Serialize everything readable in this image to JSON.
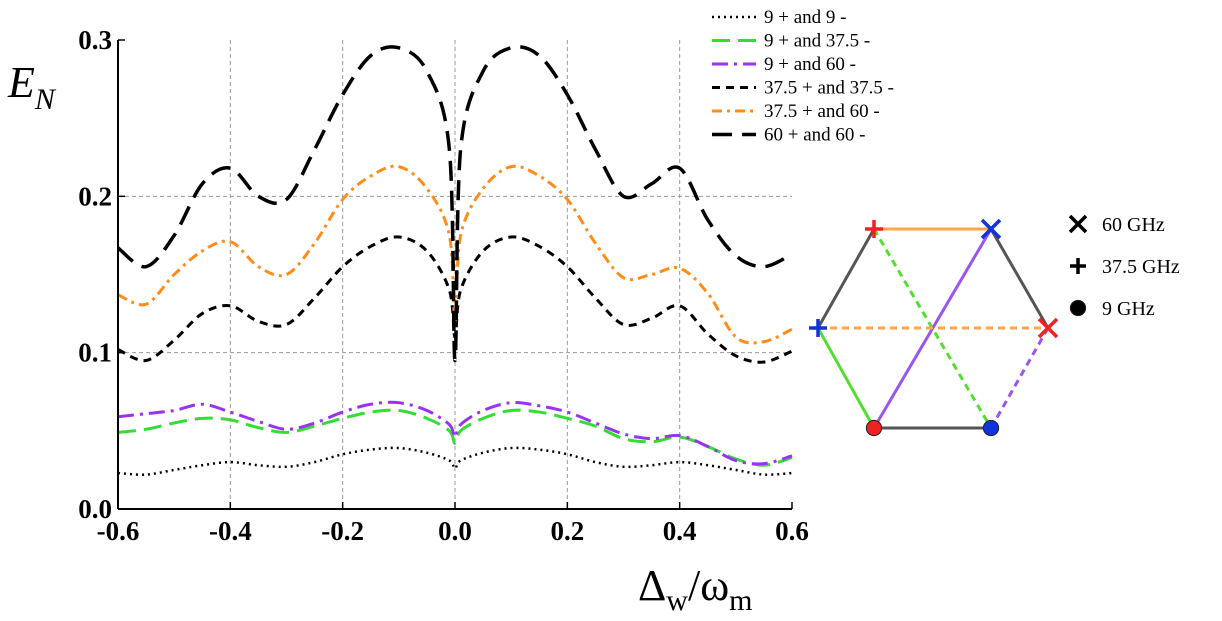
{
  "chart_data": {
    "type": "line",
    "title": "",
    "xlabel": {
      "main": "Δ",
      "sub": "w",
      "sep": "/ω",
      "sub2": "m"
    },
    "ylabel": {
      "main": "E",
      "sub": "N"
    },
    "xlim": [
      -0.6,
      0.6
    ],
    "ylim": [
      0,
      0.3
    ],
    "grid": true,
    "legend_position": "top-right",
    "xticks": [
      "-0.6",
      "-0.4",
      "-0.2",
      "0.0",
      "0.2",
      "0.4",
      "0.6"
    ],
    "yticks": [
      "0.0",
      "0.1",
      "0.2",
      "0.3"
    ],
    "x": [
      -0.6,
      -0.55,
      -0.5,
      -0.45,
      -0.4,
      -0.35,
      -0.3,
      -0.25,
      -0.2,
      -0.15,
      -0.1,
      -0.05,
      -0.01,
      0.0,
      0.01,
      0.05,
      0.1,
      0.15,
      0.2,
      0.25,
      0.3,
      0.35,
      0.4,
      0.45,
      0.5,
      0.55,
      0.6
    ],
    "series": [
      {
        "name": "9 + and 9 -",
        "color": "#000000",
        "dash": "2,4",
        "width": 2.5,
        "values": [
          0.023,
          0.022,
          0.025,
          0.028,
          0.03,
          0.028,
          0.027,
          0.03,
          0.035,
          0.038,
          0.039,
          0.036,
          0.031,
          0.026,
          0.031,
          0.036,
          0.039,
          0.038,
          0.035,
          0.03,
          0.027,
          0.028,
          0.03,
          0.028,
          0.025,
          0.022,
          0.023
        ]
      },
      {
        "name": "9 + and 37.5 -",
        "color": "#33dd33",
        "dash": "18,8",
        "width": 3,
        "values": [
          0.049,
          0.051,
          0.055,
          0.058,
          0.057,
          0.052,
          0.049,
          0.053,
          0.058,
          0.062,
          0.063,
          0.058,
          0.05,
          0.042,
          0.05,
          0.058,
          0.063,
          0.062,
          0.058,
          0.053,
          0.045,
          0.043,
          0.046,
          0.04,
          0.032,
          0.028,
          0.033
        ]
      },
      {
        "name": "9 + and 60 -",
        "color": "#9933ee",
        "dash": "16,6,3,6",
        "width": 3,
        "values": [
          0.059,
          0.061,
          0.063,
          0.067,
          0.062,
          0.056,
          0.051,
          0.055,
          0.062,
          0.067,
          0.068,
          0.063,
          0.054,
          0.046,
          0.054,
          0.063,
          0.068,
          0.066,
          0.062,
          0.055,
          0.048,
          0.045,
          0.047,
          0.04,
          0.031,
          0.029,
          0.034
        ]
      },
      {
        "name": "37.5 + and 37.5 -",
        "color": "#000000",
        "dash": "8,6",
        "width": 3,
        "values": [
          0.102,
          0.095,
          0.108,
          0.125,
          0.13,
          0.12,
          0.118,
          0.135,
          0.155,
          0.168,
          0.174,
          0.165,
          0.14,
          0.11,
          0.14,
          0.165,
          0.174,
          0.168,
          0.155,
          0.135,
          0.118,
          0.122,
          0.13,
          0.112,
          0.098,
          0.094,
          0.101
        ]
      },
      {
        "name": "37.5 + and 60 -",
        "color": "#ff8c1a",
        "dash": "10,5,3,5",
        "width": 3,
        "values": [
          0.137,
          0.131,
          0.15,
          0.165,
          0.171,
          0.155,
          0.15,
          0.17,
          0.198,
          0.213,
          0.219,
          0.205,
          0.175,
          0.12,
          0.175,
          0.205,
          0.219,
          0.213,
          0.198,
          0.17,
          0.148,
          0.15,
          0.154,
          0.138,
          0.11,
          0.107,
          0.115
        ]
      },
      {
        "name": "60 + and 60 -",
        "color": "#000000",
        "dash": "20,10",
        "width": 3.5,
        "values": [
          0.167,
          0.155,
          0.175,
          0.208,
          0.218,
          0.2,
          0.198,
          0.23,
          0.265,
          0.29,
          0.295,
          0.28,
          0.23,
          0.095,
          0.23,
          0.28,
          0.295,
          0.29,
          0.265,
          0.23,
          0.2,
          0.208,
          0.218,
          0.185,
          0.162,
          0.155,
          0.163
        ]
      }
    ]
  },
  "key": {
    "items": [
      {
        "symbol": "cross",
        "label": "60 GHz"
      },
      {
        "symbol": "plus",
        "label": "37.5 GHz"
      },
      {
        "symbol": "dot",
        "label": "9 GHz"
      }
    ]
  },
  "hexagon": {
    "nodes": [
      {
        "id": "top-left",
        "symbol": "plus",
        "color": "#ee2222"
      },
      {
        "id": "top-right",
        "symbol": "cross",
        "color": "#1133dd"
      },
      {
        "id": "right",
        "symbol": "cross",
        "color": "#ee2222"
      },
      {
        "id": "bottom-right",
        "symbol": "dot",
        "color": "#1133dd"
      },
      {
        "id": "bottom-left",
        "symbol": "dot",
        "color": "#ee2222"
      },
      {
        "id": "left",
        "symbol": "plus",
        "color": "#1133dd"
      }
    ],
    "edges": [
      {
        "from": "top-left",
        "to": "top-right",
        "color": "#ffa64d",
        "dashed": false
      },
      {
        "from": "top-right",
        "to": "right",
        "color": "#555555",
        "dashed": false
      },
      {
        "from": "right",
        "to": "bottom-right",
        "color": "#9955ee",
        "dashed": true
      },
      {
        "from": "bottom-right",
        "to": "bottom-left",
        "color": "#555555",
        "dashed": false
      },
      {
        "from": "bottom-left",
        "to": "left",
        "color": "#55dd33",
        "dashed": false
      },
      {
        "from": "left",
        "to": "top-left",
        "color": "#555555",
        "dashed": false
      },
      {
        "from": "top-left",
        "to": "bottom-right",
        "color": "#55dd33",
        "dashed": true
      },
      {
        "from": "top-right",
        "to": "bottom-left",
        "color": "#9955ee",
        "dashed": false
      },
      {
        "from": "left",
        "to": "right",
        "color": "#ffa64d",
        "dashed": true
      }
    ]
  }
}
